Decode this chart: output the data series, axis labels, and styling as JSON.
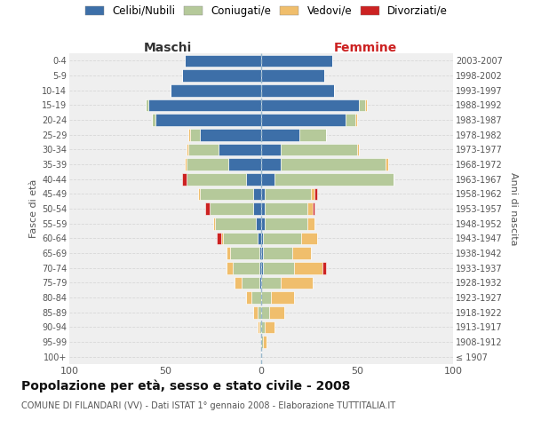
{
  "age_groups": [
    "100+",
    "95-99",
    "90-94",
    "85-89",
    "80-84",
    "75-79",
    "70-74",
    "65-69",
    "60-64",
    "55-59",
    "50-54",
    "45-49",
    "40-44",
    "35-39",
    "30-34",
    "25-29",
    "20-24",
    "15-19",
    "10-14",
    "5-9",
    "0-4"
  ],
  "birth_years": [
    "≤ 1907",
    "1908-1912",
    "1913-1917",
    "1918-1922",
    "1923-1927",
    "1928-1932",
    "1933-1937",
    "1938-1942",
    "1943-1947",
    "1948-1952",
    "1953-1957",
    "1958-1962",
    "1963-1967",
    "1968-1972",
    "1973-1977",
    "1978-1982",
    "1983-1987",
    "1988-1992",
    "1993-1997",
    "1998-2002",
    "2003-2007"
  ],
  "colors": {
    "celibi": "#3d6fa8",
    "coniugati": "#b5c99a",
    "vedovi": "#f0be6c",
    "divorziati": "#cc2222"
  },
  "males": {
    "celibi": [
      0,
      0,
      0,
      0,
      0,
      1,
      1,
      1,
      2,
      3,
      4,
      4,
      8,
      17,
      22,
      32,
      55,
      59,
      47,
      41,
      40
    ],
    "coniugati": [
      0,
      0,
      1,
      2,
      5,
      9,
      14,
      15,
      18,
      21,
      23,
      28,
      31,
      22,
      16,
      5,
      2,
      1,
      0,
      0,
      0
    ],
    "vedovi": [
      0,
      0,
      1,
      2,
      3,
      4,
      3,
      2,
      1,
      1,
      0,
      1,
      0,
      1,
      1,
      1,
      0,
      0,
      0,
      0,
      0
    ],
    "divorziati": [
      0,
      0,
      0,
      0,
      0,
      0,
      0,
      0,
      2,
      0,
      2,
      0,
      2,
      0,
      0,
      0,
      0,
      0,
      0,
      0,
      0
    ]
  },
  "females": {
    "celibi": [
      0,
      0,
      0,
      0,
      0,
      0,
      1,
      1,
      1,
      2,
      2,
      2,
      7,
      10,
      10,
      20,
      44,
      51,
      38,
      33,
      37
    ],
    "coniugati": [
      0,
      1,
      2,
      4,
      5,
      10,
      16,
      15,
      20,
      22,
      22,
      24,
      62,
      55,
      40,
      14,
      5,
      3,
      0,
      0,
      0
    ],
    "vedovi": [
      0,
      2,
      5,
      8,
      12,
      17,
      15,
      10,
      8,
      4,
      3,
      2,
      0,
      1,
      1,
      0,
      1,
      1,
      0,
      0,
      0
    ],
    "divorziati": [
      0,
      0,
      0,
      0,
      0,
      0,
      2,
      0,
      0,
      0,
      1,
      1,
      0,
      0,
      0,
      0,
      0,
      0,
      0,
      0,
      0
    ]
  },
  "title": "Popolazione per età, sesso e stato civile - 2008",
  "subtitle": "COMUNE DI FILANDARI (VV) - Dati ISTAT 1° gennaio 2008 - Elaborazione TUTTITALIA.IT",
  "xlabel_left": "Maschi",
  "xlabel_right": "Femmine",
  "ylabel_left": "Fasce di età",
  "ylabel_right": "Anni di nascita",
  "xlim": 100,
  "background_color": "#efefef",
  "grid_color": "#d8d8d8"
}
